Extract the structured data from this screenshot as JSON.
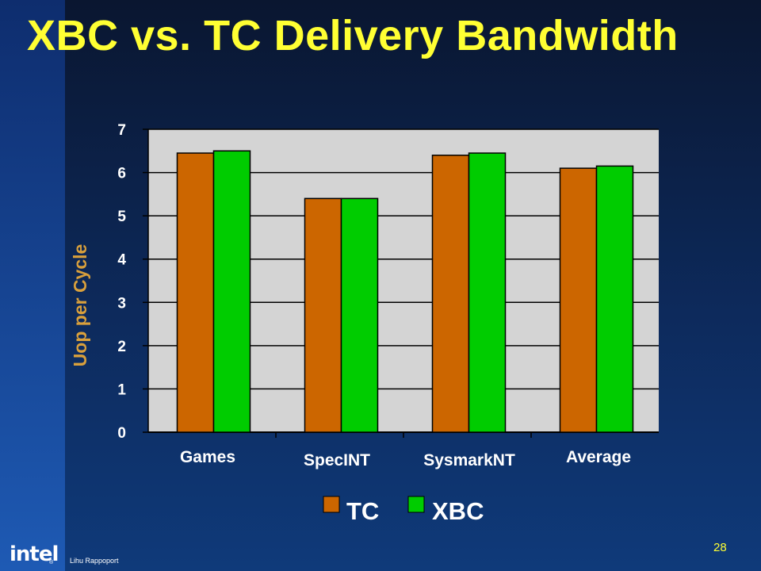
{
  "slide": {
    "title": "XBC vs. TC Delivery Bandwidth",
    "page_number": "28",
    "author": "Lihu Rappoport",
    "logo_text": "intel",
    "logo_mark": "®"
  },
  "colors": {
    "title": "#ffff33",
    "plot_background": "#d4d4d4",
    "tc": "#cc6600",
    "xbc": "#00cc00",
    "ylabel": "#d9a03c",
    "tick_text": "#ffffff",
    "page_number": "#ffff33"
  },
  "chart_data": {
    "type": "bar",
    "title": "",
    "categories": [
      "Games",
      "SpecINT",
      "SysmarkNT",
      "Average"
    ],
    "series": [
      {
        "name": "TC",
        "values": [
          6.45,
          5.4,
          6.4,
          6.1
        ]
      },
      {
        "name": "XBC",
        "values": [
          6.5,
          5.4,
          6.45,
          6.15
        ]
      }
    ],
    "xlabel": "",
    "ylabel": "Uop per Cycle",
    "ylim": [
      0,
      7
    ],
    "yticks": [
      "0",
      "1",
      "2",
      "3",
      "4",
      "5",
      "6",
      "7"
    ],
    "grid": true,
    "legend_position": "bottom"
  }
}
